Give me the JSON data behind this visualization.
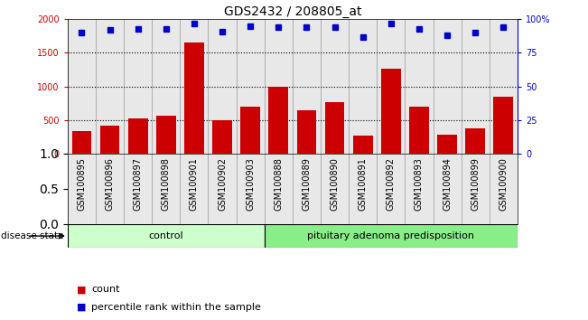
{
  "title": "GDS2432 / 208805_at",
  "categories": [
    "GSM100895",
    "GSM100896",
    "GSM100897",
    "GSM100898",
    "GSM100901",
    "GSM100902",
    "GSM100903",
    "GSM100888",
    "GSM100889",
    "GSM100890",
    "GSM100891",
    "GSM100892",
    "GSM100893",
    "GSM100894",
    "GSM100899",
    "GSM100900"
  ],
  "counts": [
    330,
    420,
    530,
    570,
    1660,
    490,
    700,
    1000,
    650,
    770,
    265,
    1265,
    700,
    275,
    380,
    840
  ],
  "percentiles": [
    90,
    92,
    93,
    93,
    97,
    91,
    95,
    94,
    94,
    94,
    87,
    97,
    93,
    88,
    90,
    94
  ],
  "bar_color": "#cc0000",
  "dot_color": "#0000cc",
  "ylim_left": [
    0,
    2000
  ],
  "ylim_right": [
    0,
    100
  ],
  "yticks_left": [
    0,
    500,
    1000,
    1500,
    2000
  ],
  "ytick_labels_left": [
    "0",
    "500",
    "1000",
    "1500",
    "2000"
  ],
  "yticks_right": [
    0,
    25,
    50,
    75,
    100
  ],
  "ytick_labels_right": [
    "0",
    "25",
    "50",
    "75",
    "100%"
  ],
  "control_count": 7,
  "disease_count": 9,
  "control_label": "control",
  "disease_label": "pituitary adenoma predisposition",
  "disease_state_label": "disease state",
  "legend_count_label": "count",
  "legend_pct_label": "percentile rank within the sample",
  "bg_plot": "#e8e8e8",
  "bg_control": "#ccffcc",
  "bg_disease": "#88ee88",
  "title_fontsize": 10,
  "tick_fontsize": 7,
  "label_fontsize": 8
}
